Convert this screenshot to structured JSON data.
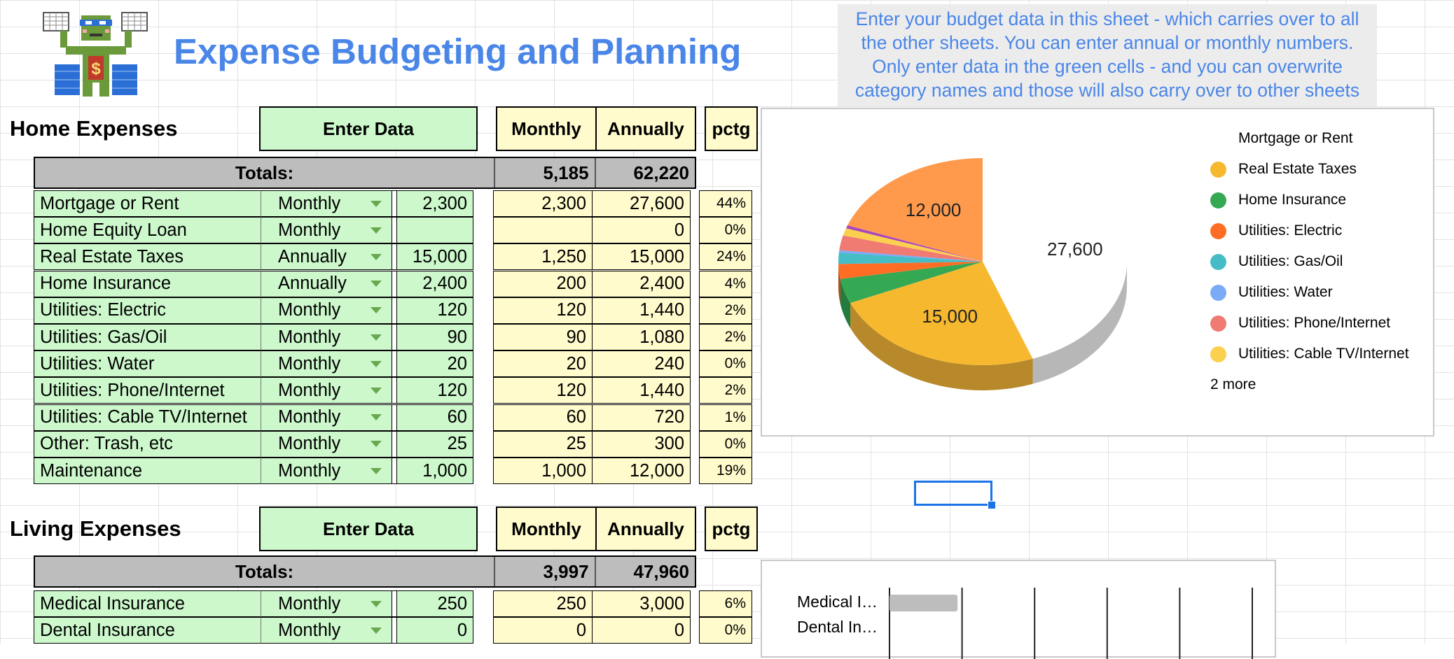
{
  "header": {
    "title": "Expense Budgeting and Planning",
    "note": "Enter your budget data in this sheet - which carries over to all the other sheets.  You can enter annual or monthly numbers. Only enter data in the green cells - and you can overwrite category names and those will also carry over to other sheets",
    "note_lines": [
      "Enter your budget data in this sheet - which carries over to all",
      "the other sheets.  You can enter annual or monthly numbers.",
      "Only enter data in the green cells - and you can overwrite",
      "category names and those will also carry over to other sheets"
    ]
  },
  "home": {
    "title": "Home Expenses",
    "enter_label": "Enter Data",
    "monthly_label": "Monthly",
    "annually_label": "Annually",
    "pctg_label": "pctg",
    "totals_label": "Totals:",
    "total_monthly": "5,185",
    "total_annually": "62,220",
    "rows": [
      {
        "name": "Mortgage or Rent",
        "freq": "Monthly",
        "value": "2,300",
        "monthly": "2,300",
        "annually": "27,600",
        "pctg": "44%"
      },
      {
        "name": "Home Equity Loan",
        "freq": "Monthly",
        "value": "",
        "monthly": "",
        "annually": "0",
        "pctg": "0%"
      },
      {
        "name": "Real Estate Taxes",
        "freq": "Annually",
        "value": "15,000",
        "monthly": "1,250",
        "annually": "15,000",
        "pctg": "24%"
      },
      {
        "name": "Home Insurance",
        "freq": "Annually",
        "value": "2,400",
        "monthly": "200",
        "annually": "2,400",
        "pctg": "4%"
      },
      {
        "name": "Utilities: Electric",
        "freq": "Monthly",
        "value": "120",
        "monthly": "120",
        "annually": "1,440",
        "pctg": "2%"
      },
      {
        "name": "Utilities: Gas/Oil",
        "freq": "Monthly",
        "value": "90",
        "monthly": "90",
        "annually": "1,080",
        "pctg": "2%"
      },
      {
        "name": "Utilities: Water",
        "freq": "Monthly",
        "value": "20",
        "monthly": "20",
        "annually": "240",
        "pctg": "0%"
      },
      {
        "name": "Utilities: Phone/Internet",
        "freq": "Monthly",
        "value": "120",
        "monthly": "120",
        "annually": "1,440",
        "pctg": "2%"
      },
      {
        "name": "Utilities: Cable TV/Internet",
        "freq": "Monthly",
        "value": "60",
        "monthly": "60",
        "annually": "720",
        "pctg": "1%"
      },
      {
        "name": "Other: Trash, etc",
        "freq": "Monthly",
        "value": "25",
        "monthly": "25",
        "annually": "300",
        "pctg": "0%"
      },
      {
        "name": "Maintenance",
        "freq": "Monthly",
        "value": "1,000",
        "monthly": "1,000",
        "annually": "12,000",
        "pctg": "19%"
      }
    ]
  },
  "living": {
    "title": "Living Expenses",
    "enter_label": "Enter Data",
    "monthly_label": "Monthly",
    "annually_label": "Annually",
    "pctg_label": "pctg",
    "totals_label": "Totals:",
    "total_monthly": "3,997",
    "total_annually": "47,960",
    "rows": [
      {
        "name": "Medical Insurance",
        "freq": "Monthly",
        "value": "250",
        "monthly": "250",
        "annually": "3,000",
        "pctg": "6%"
      },
      {
        "name": "Dental Insurance",
        "freq": "Monthly",
        "value": "0",
        "monthly": "0",
        "annually": "0",
        "pctg": "0%"
      }
    ]
  },
  "pie_chart": {
    "labels": {
      "mortgage": "27,600",
      "taxes": "15,000",
      "maintenance": "12,000"
    },
    "legend": [
      {
        "name": "Mortgage or Rent",
        "color": "#ffffff"
      },
      {
        "name": "Real Estate Taxes",
        "color": "#f6b82e"
      },
      {
        "name": "Home Insurance",
        "color": "#34a853"
      },
      {
        "name": "Utilities: Electric",
        "color": "#ff6d24"
      },
      {
        "name": "Utilities: Gas/Oil",
        "color": "#46bdc6"
      },
      {
        "name": "Utilities: Water",
        "color": "#7baaf7"
      },
      {
        "name": "Utilities: Phone/Internet",
        "color": "#f07b72"
      },
      {
        "name": "Utilities: Cable TV/Internet",
        "color": "#fcd04f"
      }
    ],
    "more_label": "2 more"
  },
  "bar_chart": {
    "labels": [
      "Medical I…",
      "Dental In…"
    ]
  },
  "chart_data": [
    {
      "type": "pie",
      "categories": [
        "Mortgage or Rent",
        "Home Equity Loan",
        "Real Estate Taxes",
        "Home Insurance",
        "Utilities: Electric",
        "Utilities: Gas/Oil",
        "Utilities: Water",
        "Utilities: Phone/Internet",
        "Utilities: Cable TV/Internet",
        "Other: Trash, etc",
        "Maintenance"
      ],
      "values": [
        27600,
        0,
        15000,
        2400,
        1440,
        1080,
        240,
        1440,
        720,
        300,
        12000
      ]
    },
    {
      "type": "bar",
      "categories": [
        "Medical I…",
        "Dental In…"
      ],
      "values": [
        3000,
        0
      ]
    }
  ]
}
